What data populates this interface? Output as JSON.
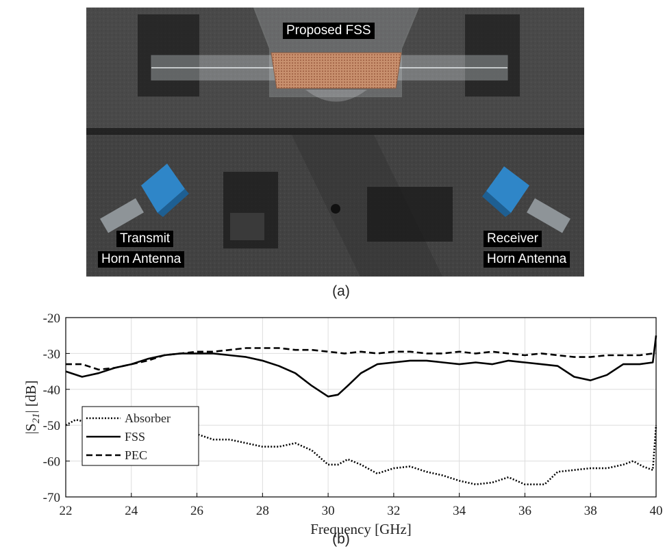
{
  "photo": {
    "labels": {
      "fss": "Proposed FSS",
      "tx_line1": "Transmit",
      "tx_line2": "Horn Antenna",
      "rx_line1": "Receiver",
      "rx_line2": "Horn Antenna"
    },
    "caption": "(a)"
  },
  "chart_caption": "(b)",
  "chart_data": {
    "type": "line",
    "xlabel": "Frequency [GHz]",
    "ylabel_text": "|S",
    "ylabel_sub": "21",
    "ylabel_end": "| [dB]",
    "xlim": [
      22,
      40
    ],
    "ylim": [
      -70,
      -20
    ],
    "grid": true,
    "legend_position": "lower-left",
    "xticks": [
      "22",
      "24",
      "26",
      "28",
      "30",
      "32",
      "34",
      "36",
      "38",
      "40"
    ],
    "yticks": [
      "-20",
      "-30",
      "-40",
      "-50",
      "-60",
      "-70"
    ],
    "series": [
      {
        "name": "Absorber",
        "style": "dotted",
        "x": [
          22,
          22.3,
          22.6,
          23,
          23.5,
          24,
          24.5,
          25,
          25.5,
          26,
          26.5,
          27,
          27.5,
          28,
          28.5,
          29,
          29.5,
          30,
          30.3,
          30.6,
          31,
          31.5,
          32,
          32.5,
          33,
          33.5,
          34,
          34.5,
          35,
          35.5,
          36,
          36.3,
          36.6,
          37,
          37.5,
          38,
          38.5,
          39,
          39.3,
          39.6,
          39.9,
          40
        ],
        "y": [
          -50,
          -48.5,
          -49,
          -49,
          -49,
          -49.5,
          -49.5,
          -50,
          -51,
          -52.5,
          -54,
          -54,
          -55,
          -56,
          -56,
          -55,
          -57,
          -61,
          -61,
          -59.5,
          -61,
          -63.5,
          -62,
          -61.5,
          -63,
          -64,
          -65.5,
          -66.5,
          -66,
          -64.5,
          -66.5,
          -66.5,
          -66.5,
          -63,
          -62.5,
          -62,
          -62,
          -61,
          -60,
          -61.5,
          -62.5,
          -50
        ]
      },
      {
        "name": "FSS",
        "style": "solid",
        "x": [
          22,
          22.5,
          23,
          23.5,
          24,
          24.5,
          25,
          25.5,
          26,
          26.5,
          27,
          27.5,
          28,
          28.5,
          29,
          29.5,
          30,
          30.3,
          30.6,
          31,
          31.5,
          32,
          32.5,
          33,
          33.5,
          34,
          34.5,
          35,
          35.5,
          36,
          36.5,
          37,
          37.5,
          38,
          38.5,
          39,
          39.5,
          39.9,
          40
        ],
        "y": [
          -35,
          -36.5,
          -35.5,
          -34,
          -33,
          -31.5,
          -30.5,
          -30,
          -30,
          -30,
          -30.5,
          -31,
          -32,
          -33.5,
          -35.5,
          -39,
          -42,
          -41.5,
          -39,
          -35.5,
          -33,
          -32.5,
          -32,
          -32,
          -32.5,
          -33,
          -32.5,
          -33,
          -32,
          -32.5,
          -33,
          -33.5,
          -36.5,
          -37.5,
          -36,
          -33,
          -33,
          -32.5,
          -25
        ]
      },
      {
        "name": "PEC",
        "style": "dashed",
        "x": [
          22,
          22.5,
          23,
          23.5,
          24,
          24.5,
          25,
          25.5,
          26,
          26.5,
          27,
          27.5,
          28,
          28.5,
          29,
          29.5,
          30,
          30.5,
          31,
          31.5,
          32,
          32.5,
          33,
          33.5,
          34,
          34.5,
          35,
          35.5,
          36,
          36.5,
          37,
          37.5,
          38,
          38.5,
          39,
          39.5,
          39.9,
          40
        ],
        "y": [
          -33,
          -33,
          -34.5,
          -34,
          -33,
          -32,
          -30.5,
          -30,
          -29.5,
          -29.5,
          -29,
          -28.5,
          -28.5,
          -28.5,
          -29,
          -29,
          -29.5,
          -30,
          -29.5,
          -30,
          -29.5,
          -29.5,
          -30,
          -30,
          -29.5,
          -30,
          -29.5,
          -30,
          -30.5,
          -30,
          -30.5,
          -31,
          -31,
          -30.5,
          -30.5,
          -30.5,
          -30,
          -30
        ]
      }
    ]
  }
}
